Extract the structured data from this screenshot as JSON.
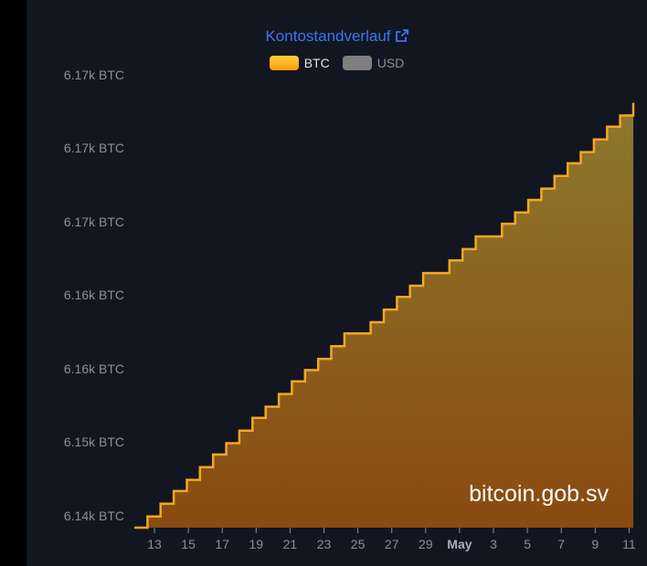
{
  "chart_data": {
    "type": "area",
    "title": "Kontostandverlauf",
    "series": [
      {
        "name": "BTC",
        "values": [
          6136,
          6136.8,
          6137.7,
          6138.6,
          6139.4,
          6140.3,
          6141.2,
          6142.0,
          6142.9,
          6143.8,
          6144.6,
          6145.5,
          6146.4,
          6147.2,
          6148.0,
          6148.9,
          6149.8,
          6149.8,
          6150.6,
          6151.5,
          6152.4,
          6153.2,
          6154.1,
          6154.1,
          6155.0,
          6155.8,
          6156.7,
          6156.7,
          6157.6,
          6158.4,
          6159.3,
          6160.1,
          6161.0,
          6161.9,
          6162.7,
          6163.6,
          6164.5,
          6165.3,
          6166.2
        ]
      }
    ],
    "ylim": [
      6136,
      6166.5
    ],
    "y_ticks": [
      "6.14k BTC",
      "6.15k BTC",
      "6.16k BTC",
      "6.16k BTC",
      "6.17k BTC",
      "6.17k BTC",
      "6.17k BTC"
    ],
    "x_ticks": [
      "13",
      "15",
      "17",
      "19",
      "21",
      "23",
      "25",
      "27",
      "29",
      "May",
      "3",
      "5",
      "7",
      "9",
      "11"
    ],
    "grid": false,
    "step": true,
    "colors": {
      "line": "#f5a623",
      "area_top": "#8c7a2e",
      "area_bottom": "#8a4a10",
      "usd_swatch": "#7f7f7f"
    }
  },
  "legend": [
    {
      "label": "BTC",
      "active": true,
      "color": "#ffb020"
    },
    {
      "label": "USD",
      "active": false,
      "color": "#7f7f7f"
    }
  ],
  "icons": {
    "title_link": "external-link-icon"
  },
  "watermark": "bitcoin.gob.sv"
}
